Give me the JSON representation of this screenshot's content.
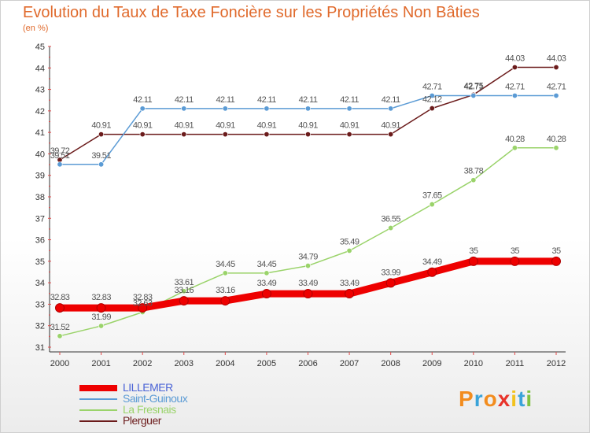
{
  "title": "Evolution du Taux de Taxe Foncière sur les Propriétés Non Bâties",
  "unit": "(en %)",
  "logo": {
    "text": "Proxiti",
    "colors": [
      "#f28c1e",
      "#3aa3d9",
      "#f28c1e",
      "#e8332a",
      "#f2c21e",
      "#3aa3d9",
      "#7fc241"
    ]
  },
  "chart_data": {
    "type": "line",
    "x": [
      2000,
      2001,
      2002,
      2003,
      2004,
      2005,
      2006,
      2007,
      2008,
      2009,
      2010,
      2011,
      2012
    ],
    "ylim": [
      31,
      45
    ],
    "yticks": [
      31,
      32,
      33,
      34,
      35,
      36,
      37,
      38,
      39,
      40,
      41,
      42,
      43,
      44,
      45
    ],
    "grid": false,
    "series": [
      {
        "name": "Plerguer",
        "color": "#6b1b1b",
        "stroke_width": 1.5,
        "values": [
          39.72,
          40.91,
          40.91,
          40.91,
          40.91,
          40.91,
          40.91,
          40.91,
          40.91,
          42.12,
          42.75,
          44.03,
          44.03
        ],
        "labels": [
          "39.72",
          "40.91",
          "40.91",
          "40.91",
          "40.91",
          "40.91",
          "40.91",
          "40.91",
          "40.91",
          "42.12",
          "42.75",
          "44.03",
          "44.03"
        ]
      },
      {
        "name": "Saint-Guinoux",
        "color": "#5b9bd5",
        "stroke_width": 1.5,
        "values": [
          39.51,
          39.51,
          42.11,
          42.11,
          42.11,
          42.11,
          42.11,
          42.11,
          42.11,
          42.71,
          42.71,
          42.71,
          42.71
        ],
        "labels": [
          "39.51",
          "39.51",
          "42.11",
          "42.11",
          "42.11",
          "42.11",
          "42.11",
          "42.11",
          "42.11",
          "42.71",
          "42.71",
          "42.71",
          "42.71"
        ]
      },
      {
        "name": "La Fresnais",
        "color": "#9ad36a",
        "stroke_width": 1.5,
        "values": [
          31.52,
          31.99,
          32.63,
          33.61,
          34.45,
          34.45,
          34.79,
          35.49,
          36.55,
          37.65,
          38.78,
          40.28,
          40.28
        ],
        "labels": [
          "31.52",
          "31.99",
          "32.63",
          "33.61",
          "34.45",
          "34.45",
          "34.79",
          "35.49",
          "36.55",
          "37.65",
          "38.78",
          "40.28",
          "40.28"
        ]
      },
      {
        "name": "LILLEMER",
        "color": "#ee0000",
        "stroke_width": 9,
        "values": [
          32.83,
          32.83,
          32.83,
          33.16,
          33.16,
          33.49,
          33.49,
          33.49,
          33.99,
          34.49,
          35,
          35,
          35
        ],
        "labels": [
          "32.83",
          "32.83",
          "32.83",
          "33.16",
          "33.16",
          "33.49",
          "33.49",
          "33.49",
          "33.99",
          "34.49",
          "35",
          "35",
          "35"
        ]
      }
    ],
    "legend": [
      "LILLEMER",
      "Saint-Guinoux",
      "La Fresnais",
      "Plerguer"
    ],
    "legend_placement": "bottom-left"
  }
}
